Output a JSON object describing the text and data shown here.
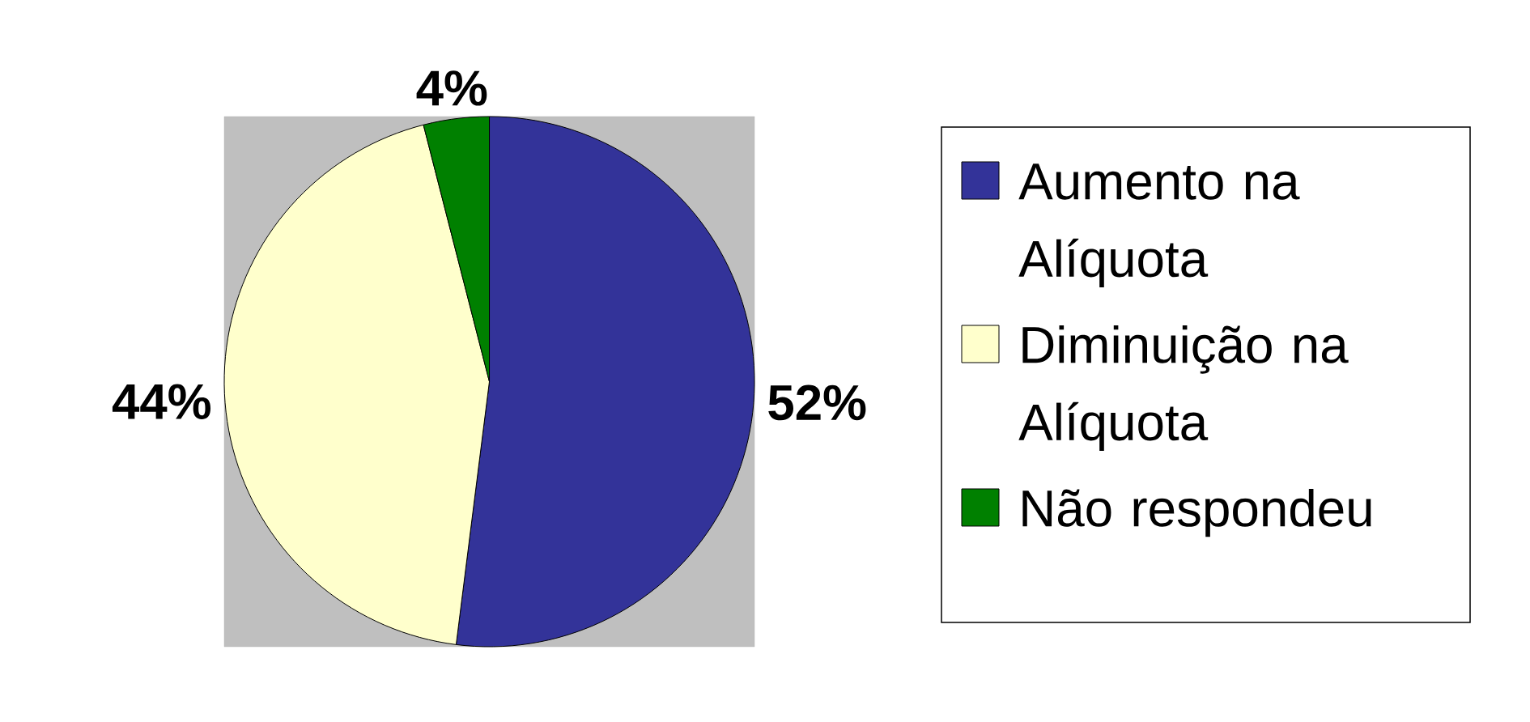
{
  "chart_data": {
    "type": "pie",
    "categories": [
      "Aumento na Alíquota",
      "Diminuição na Alíquota",
      "Não respondeu"
    ],
    "values": [
      52,
      44,
      4
    ],
    "colors": [
      "#333399",
      "#ffffcc",
      "#008000"
    ],
    "value_labels": [
      "52%",
      "44%",
      "4%"
    ],
    "legend": "right"
  }
}
